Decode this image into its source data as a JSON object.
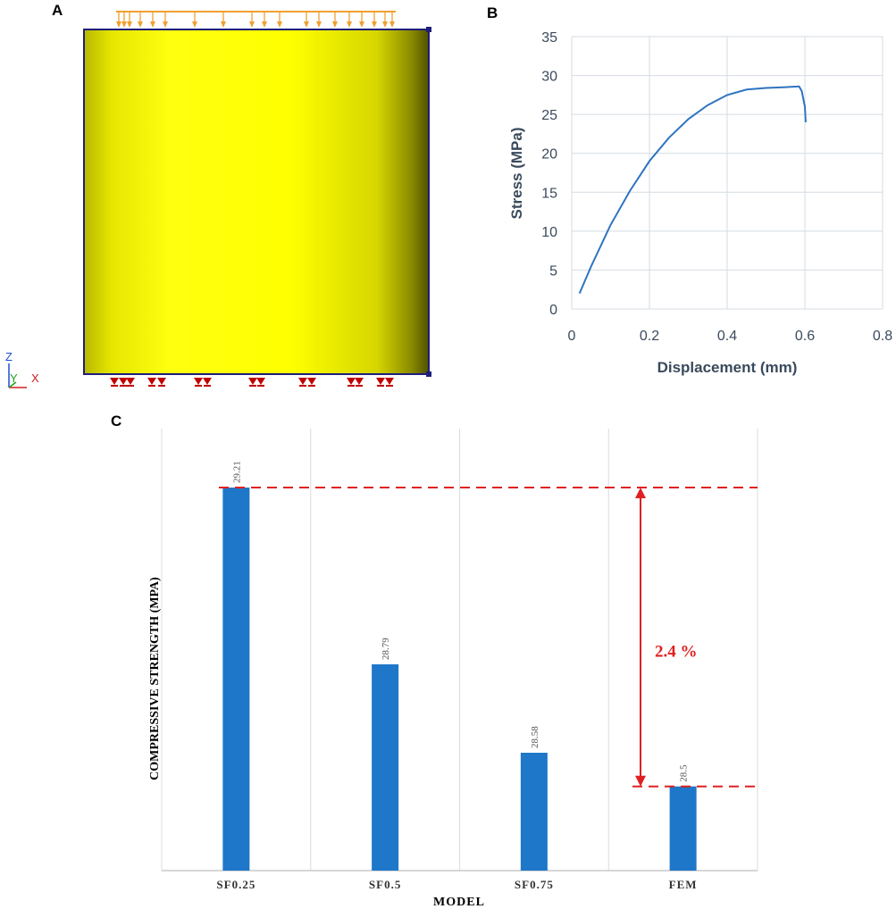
{
  "panels": {
    "a_label": "A",
    "b_label": "B",
    "c_label": "C"
  },
  "panel_a": {
    "axis_z": "Z",
    "axis_y": "Y",
    "axis_x": "X",
    "colors": {
      "cylinder": "#ffff00",
      "edge": "#1f1f7a",
      "load_arrows": "#f0a030",
      "supports": "#c00000"
    }
  },
  "chart_data": [
    {
      "type": "line",
      "xlabel": "Displacement (mm)",
      "ylabel": "Stress (MPa)",
      "xlim": [
        0,
        0.8
      ],
      "ylim": [
        0,
        35
      ],
      "x_ticks": [
        "0",
        "0.2",
        "0.4",
        "0.6",
        "0.8"
      ],
      "y_ticks": [
        "0",
        "5",
        "10",
        "15",
        "20",
        "25",
        "30",
        "35"
      ],
      "grid": true,
      "color": "#2e74c0",
      "series": [
        {
          "x": [
            0.02,
            0.05,
            0.1,
            0.15,
            0.2,
            0.25,
            0.3,
            0.35,
            0.4,
            0.45,
            0.5,
            0.55,
            0.585,
            0.592,
            0.6,
            0.602
          ],
          "y": [
            2.0,
            5.5,
            10.8,
            15.2,
            19.0,
            22.0,
            24.4,
            26.2,
            27.5,
            28.2,
            28.4,
            28.5,
            28.6,
            28.0,
            26.0,
            24.0
          ]
        }
      ]
    },
    {
      "type": "bar",
      "xlabel": "MODEL",
      "ylabel": "COMPRESSIVE STRENGTH (MPA)",
      "categories": [
        "SF0.25",
        "SF0.5",
        "SF0.75",
        "FEM"
      ],
      "values": [
        29.21,
        28.79,
        28.58,
        28.5
      ],
      "data_labels": [
        "29.21",
        "28.79",
        "28.58",
        "28.5"
      ],
      "ylim": [
        28.3,
        29.3
      ],
      "color": "#1f77c9",
      "annotation": {
        "text": "2.4 %",
        "color": "#e02020"
      }
    }
  ]
}
